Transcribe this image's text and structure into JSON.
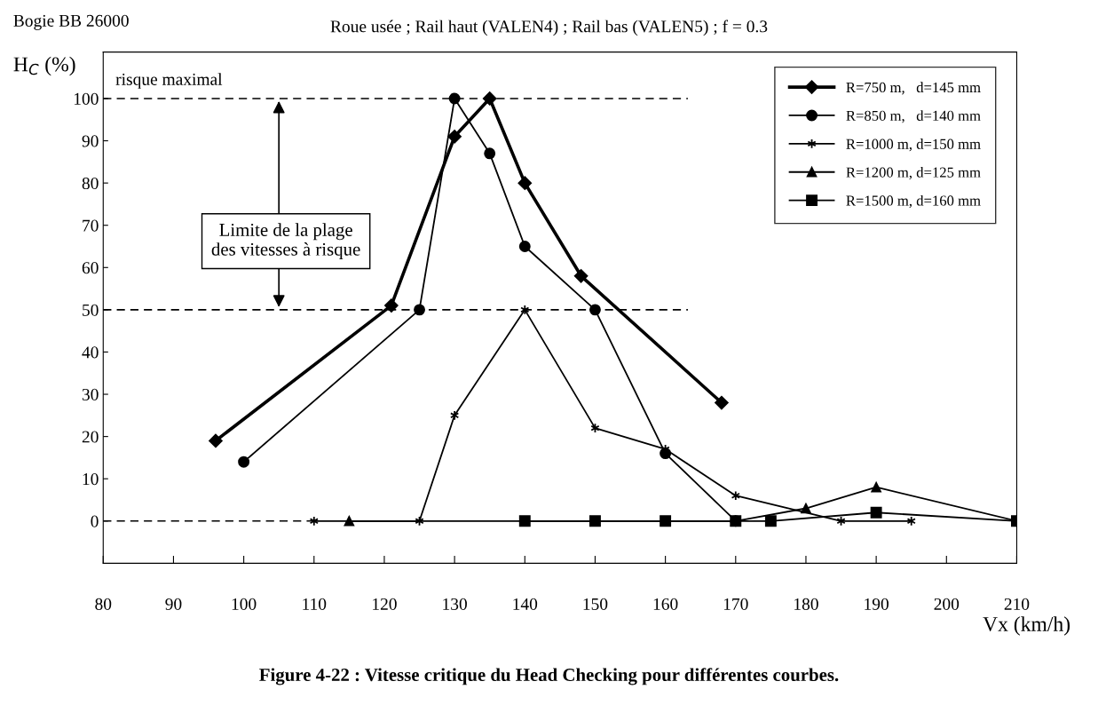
{
  "chart_data": {
    "type": "line",
    "title": "Bogie BB 26000",
    "subtitle": "Roue usée ; Rail haut (VALEN4) ; Rail bas (VALEN5) ; f = 0.3",
    "xlabel": "Vx (km/h)",
    "ylabel": "H$_{C}$ (%)",
    "xlim": [
      80,
      210
    ],
    "xticks": [
      80,
      90,
      100,
      110,
      120,
      130,
      140,
      150,
      160,
      170,
      180,
      190,
      200,
      210
    ],
    "ylim": [
      -10,
      111
    ],
    "yticks": [
      0,
      10,
      20,
      30,
      40,
      50,
      60,
      70,
      80,
      90,
      100
    ],
    "grid": false,
    "legend": "top right",
    "line_style": "solid",
    "series": [
      {
        "name": "R=750 m,   d=145 mm",
        "color": "#000000",
        "marker": "diamond",
        "x": [
          96,
          121,
          130,
          135,
          140,
          148,
          168
        ],
        "values": [
          19,
          51,
          91,
          100,
          80,
          58,
          28
        ]
      },
      {
        "name": "R=850 m,   d=140 mm",
        "color": "#000000",
        "marker": "circle",
        "x": [
          100,
          125,
          130,
          135,
          140,
          150,
          160,
          170
        ],
        "values": [
          14,
          50,
          100,
          87,
          65,
          50,
          16,
          0
        ]
      },
      {
        "name": "R=1000 m, d=150 mm",
        "color": "#000000",
        "marker": "cross",
        "x": [
          110,
          125,
          130,
          140,
          150,
          160,
          170,
          185,
          195
        ],
        "values": [
          0,
          0,
          25,
          50,
          22,
          17,
          6,
          0,
          0
        ]
      },
      {
        "name": "R=1200 m, d=125 mm",
        "color": "#000000",
        "marker": "triangle",
        "x": [
          115,
          170,
          180,
          190,
          210
        ],
        "values": [
          0,
          0,
          3,
          8,
          0
        ]
      },
      {
        "name": "R=1500 m, d=160 mm",
        "color": "#000000",
        "marker": "square",
        "x": [
          140,
          150,
          160,
          170,
          175,
          190,
          210
        ],
        "values": [
          0,
          0,
          0,
          0,
          0,
          2,
          0
        ]
      }
    ],
    "ref_lines": [
      {
        "axis": "y",
        "value": 100,
        "label": "risque maximal",
        "color": "#000000",
        "line_style": "dashed"
      },
      {
        "axis": "y",
        "value": 50,
        "color": "#000000",
        "line_style": "dashed"
      },
      {
        "axis": "y",
        "value": 0,
        "color": "#000000",
        "line_style": "dashed"
      }
    ],
    "annotations": [
      "Limite de la plage\ndes vitesses à risque",
      "Figure 4-22 : Vitesse critique du Head Checking pour différentes courbes."
    ]
  }
}
